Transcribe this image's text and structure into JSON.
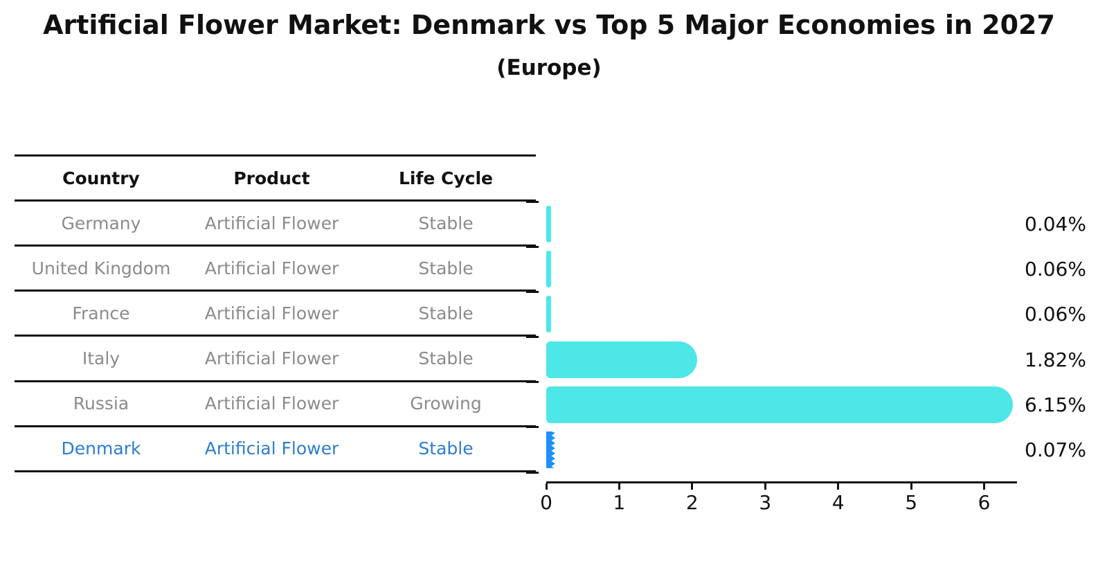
{
  "title": "Artificial Flower Market: Denmark vs Top 5 Major Economies in 2027",
  "subtitle": "(Europe)",
  "table": {
    "headers": {
      "country": "Country",
      "product": "Product",
      "life_cycle": "Life Cycle"
    },
    "rows": [
      {
        "country": "Germany",
        "product": "Artificial Flower",
        "life_cycle": "Stable"
      },
      {
        "country": "United Kingdom",
        "product": "Artificial Flower",
        "life_cycle": "Stable"
      },
      {
        "country": "France",
        "product": "Artificial Flower",
        "life_cycle": "Stable"
      },
      {
        "country": "Italy",
        "product": "Artificial Flower",
        "life_cycle": "Stable"
      },
      {
        "country": "Russia",
        "product": "Artificial Flower",
        "life_cycle": "Growing"
      },
      {
        "country": "Denmark",
        "product": "Artificial Flower",
        "life_cycle": "Stable"
      }
    ]
  },
  "chart_data": {
    "type": "bar",
    "orientation": "horizontal",
    "title": "Artificial Flower Market: Denmark vs Top 5 Major Economies in 2027 (Europe)",
    "categories": [
      "Germany",
      "United Kingdom",
      "France",
      "Italy",
      "Russia",
      "Denmark"
    ],
    "values": [
      0.04,
      0.06,
      0.06,
      1.82,
      6.15,
      0.07
    ],
    "value_labels": [
      "0.04%",
      "0.06%",
      "0.06%",
      "1.82%",
      "6.15%",
      "0.07%"
    ],
    "xticks": [
      0,
      1,
      2,
      3,
      4,
      5,
      6
    ],
    "xlim": [
      0,
      6.45
    ],
    "highlight_index": 5,
    "grid": false,
    "legend": false
  },
  "colors": {
    "bar": "#4DE7E7",
    "highlight_bar": "#1E90FF",
    "highlight_text": "#2D7DD2",
    "table_text": "#8B8B8B",
    "header_text": "#111111",
    "axis": "#111111",
    "value_label": "#111111"
  }
}
